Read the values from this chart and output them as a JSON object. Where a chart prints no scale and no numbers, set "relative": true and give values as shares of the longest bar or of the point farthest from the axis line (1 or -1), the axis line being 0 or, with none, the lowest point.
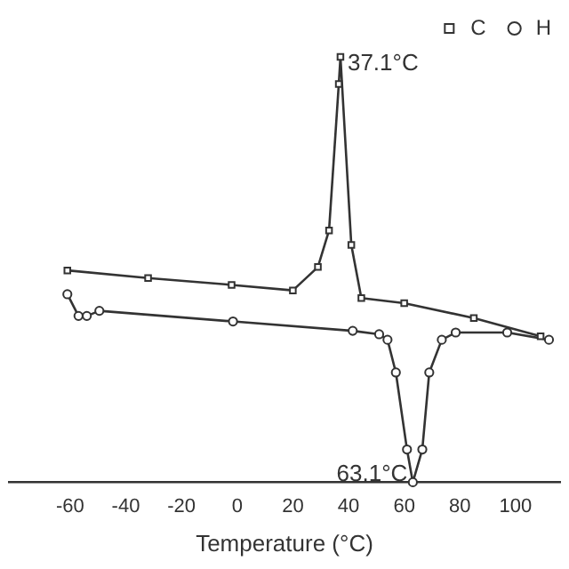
{
  "chart_data": {
    "type": "line",
    "xlabel": "Temperature (°C)",
    "relative": true,
    "xlim": [
      -82,
      116
    ],
    "xticks": [
      -60,
      -40,
      -20,
      0,
      20,
      40,
      60,
      80,
      100
    ],
    "legend": "top right",
    "grid": false,
    "line_style": "solid",
    "annotations": [
      {
        "text": "37.1°C",
        "x": 37.1,
        "y": 1
      },
      {
        "text": "63.1°C",
        "x": 63.1,
        "y": 0
      }
    ],
    "series": [
      {
        "name": "C",
        "color": "#333333",
        "marker": "square",
        "x": [
          -61,
          -32,
          -2,
          20,
          29,
          33,
          36.5,
          37.1,
          41,
          44.6,
          60,
          85,
          109
        ],
        "values": [
          0.498,
          0.48,
          0.464,
          0.451,
          0.506,
          0.592,
          0.936,
          1,
          0.558,
          0.433,
          0.421,
          0.386,
          0.343
        ]
      },
      {
        "name": "H",
        "color": "#333333",
        "marker": "circle",
        "x": [
          -61,
          -57,
          -54,
          -49.5,
          -1.5,
          41.5,
          51,
          54,
          57,
          61,
          63.1,
          66.5,
          69,
          73.5,
          78.5,
          97,
          112
        ],
        "values": [
          0.442,
          0.391,
          0.391,
          0.403,
          0.378,
          0.356,
          0.348,
          0.335,
          0.258,
          0.077,
          0,
          0.077,
          0.258,
          0.335,
          0.352,
          0.352,
          0.335
        ]
      }
    ]
  }
}
